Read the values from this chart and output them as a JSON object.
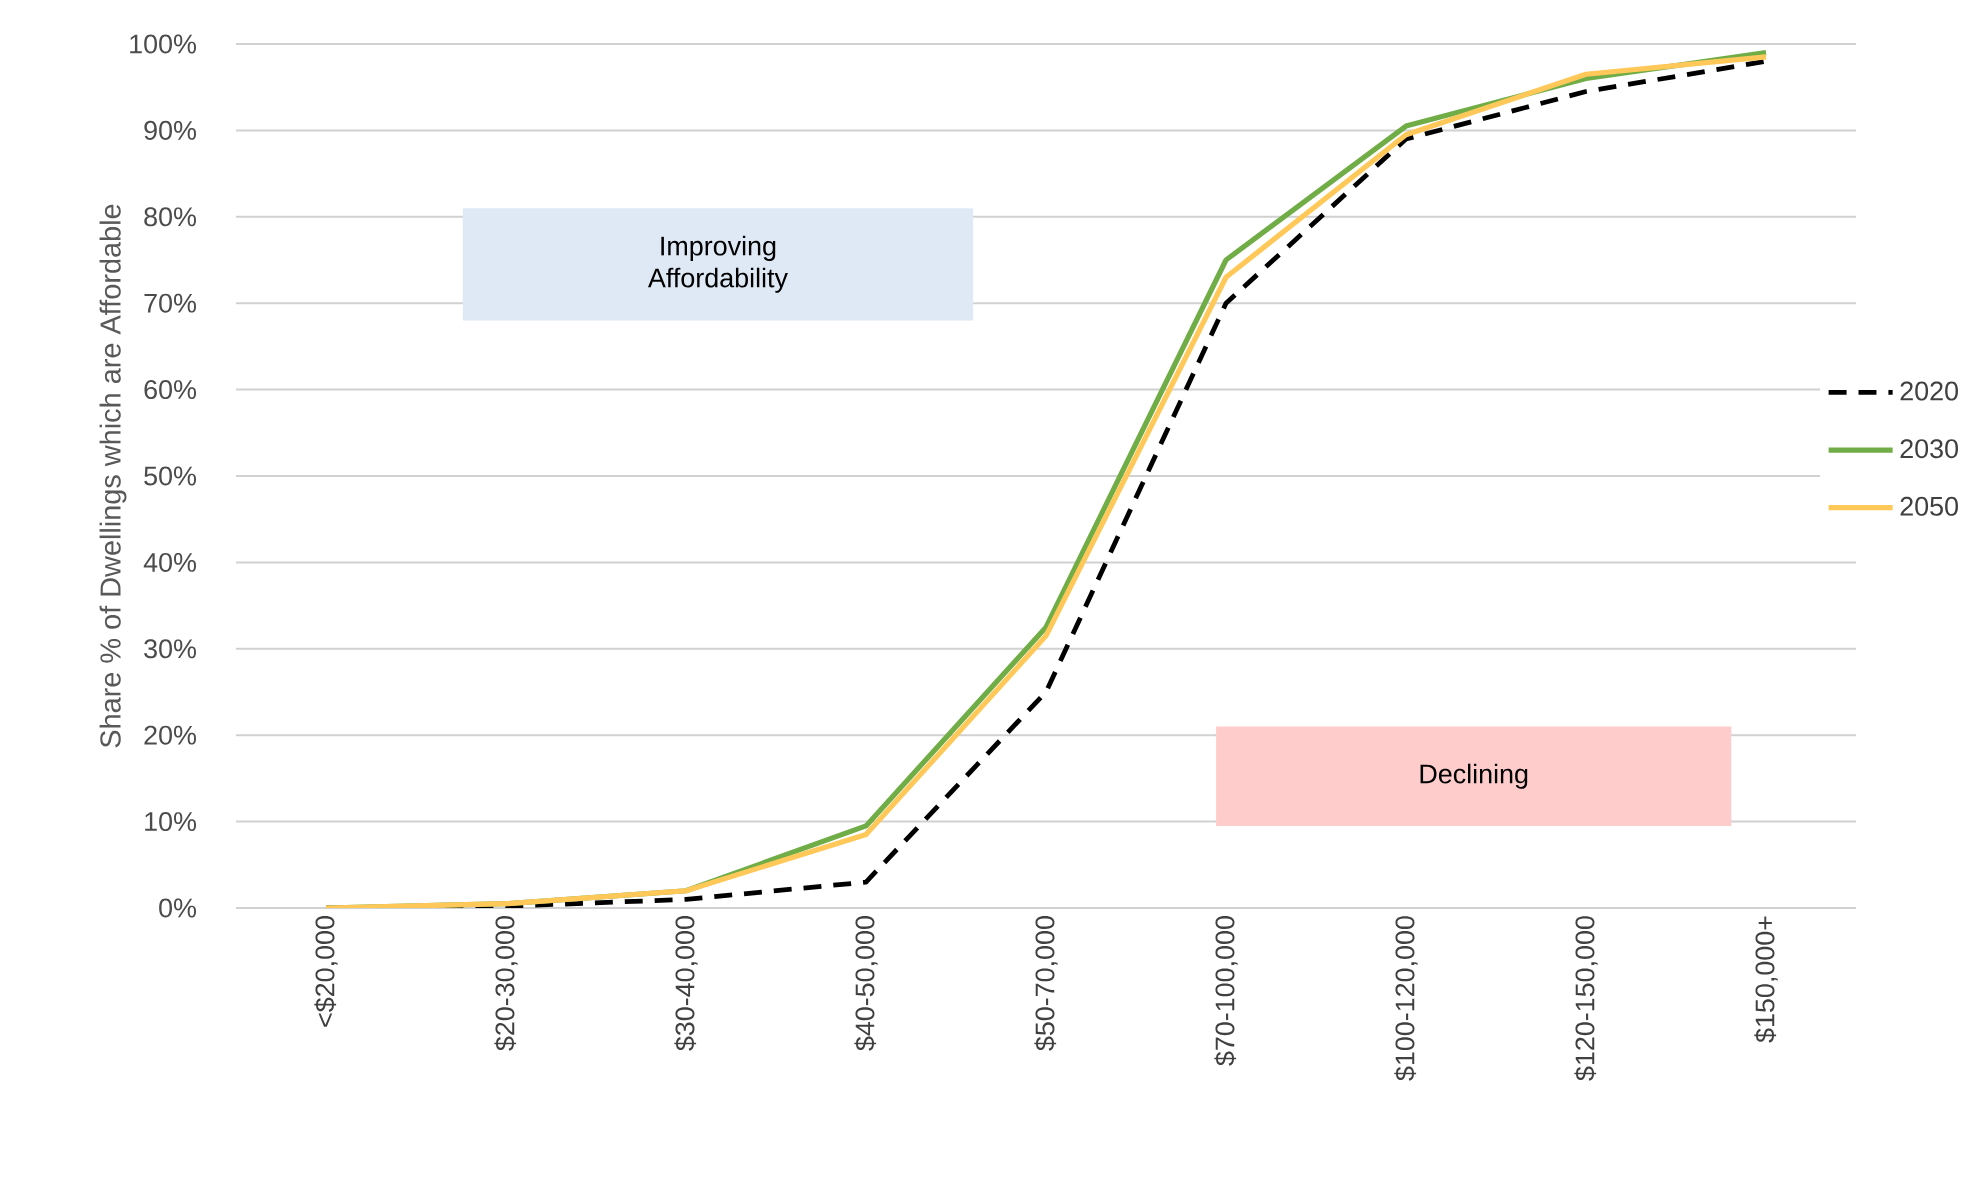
{
  "chart_data": {
    "type": "line",
    "ylabel": "Share % of Dwellings which are Affordable",
    "categories": [
      "<$20,000",
      "$20-30,000",
      "$30-40,000",
      "$40-50,000",
      "$50-70,000",
      "$70-100,000",
      "$100-120,000",
      "$120-150,000",
      "$150,000+"
    ],
    "series": [
      {
        "name": "2020",
        "color": "#000000",
        "line_style": "dashed",
        "values": [
          0,
          0.2,
          1,
          3,
          25,
          70,
          89,
          94.5,
          98
        ]
      },
      {
        "name": "2030",
        "color": "#70ad47",
        "line_style": "solid",
        "values": [
          0,
          0.5,
          2,
          9.5,
          32.5,
          75,
          90.5,
          96,
          99
        ]
      },
      {
        "name": "2050",
        "color": "#ffc859",
        "line_style": "solid",
        "values": [
          0,
          0.5,
          2,
          8.5,
          31.5,
          73,
          89.5,
          96.5,
          98.5
        ]
      }
    ],
    "ylim": [
      0,
      100
    ],
    "yticks": [
      {
        "value": 0,
        "label": "0%"
      },
      {
        "value": 10,
        "label": "10%"
      },
      {
        "value": 20,
        "label": "20%"
      },
      {
        "value": 30,
        "label": "30%"
      },
      {
        "value": 40,
        "label": "40%"
      },
      {
        "value": 50,
        "label": "50%"
      },
      {
        "value": 60,
        "label": "60%"
      },
      {
        "value": 70,
        "label": "70%"
      },
      {
        "value": 80,
        "label": "80%"
      },
      {
        "value": 90,
        "label": "90%"
      },
      {
        "value": 100,
        "label": "100%"
      }
    ],
    "grid": "y",
    "legend": "right",
    "marker": "none",
    "annotations": [
      "Improving Affordability",
      "Declining"
    ]
  }
}
